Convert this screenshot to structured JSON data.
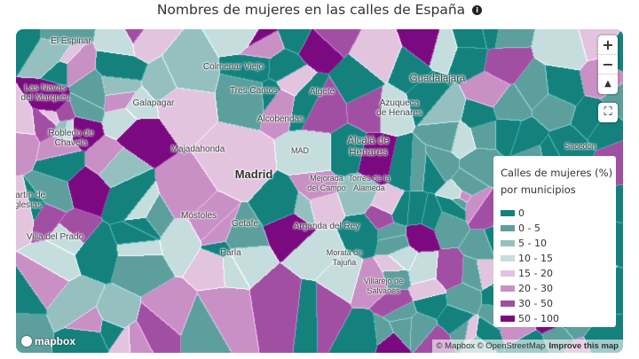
{
  "title": "Nombres de mujeres en las calles de España",
  "info_icon": "info-icon",
  "map": {
    "places": [
      "El Espinar",
      "Colmenar Viejo",
      "Las Navas\ndel Marqués",
      "Tres Cantos",
      "Algete",
      "Guadalajara",
      "Galapagar",
      "Azuqueca\nde Henares",
      "Alcobendas",
      "Robledo de\nChavela",
      "Majadahonda",
      "MAD",
      "Alcalá de\nHenares",
      "Madrid",
      "Mejorada\ndel Campo",
      "Torres de la\nAlameda",
      "Martín de\nIglesias",
      "Móstoles",
      "Getafe",
      "Villa del Prado",
      "Arganda del Rey",
      "Parla",
      "Morata de\nTajuña",
      "Villarejo de\nSalvanés",
      "Sacedón"
    ],
    "controls": {
      "zoom_in": "+",
      "zoom_out": "−",
      "compass": "▲"
    },
    "logo": "mapbox",
    "attribution": "© Mapbox © OpenStreetMap",
    "improve": "Improve this map"
  },
  "legend": {
    "title": "Calles de mujeres (%)\npor municipios",
    "items": [
      {
        "label": "0",
        "color": "#14817d"
      },
      {
        "label": "0 - 5",
        "color": "#5c9f9c"
      },
      {
        "label": "5 - 10",
        "color": "#96c0c0"
      },
      {
        "label": "10 - 15",
        "color": "#c6dddd"
      },
      {
        "label": "15 - 20",
        "color": "#e2c4df"
      },
      {
        "label": "20 - 30",
        "color": "#c890c4"
      },
      {
        "label": "30 - 50",
        "color": "#a04fa3"
      },
      {
        "label": "50 - 100",
        "color": "#7b0a80"
      }
    ]
  }
}
